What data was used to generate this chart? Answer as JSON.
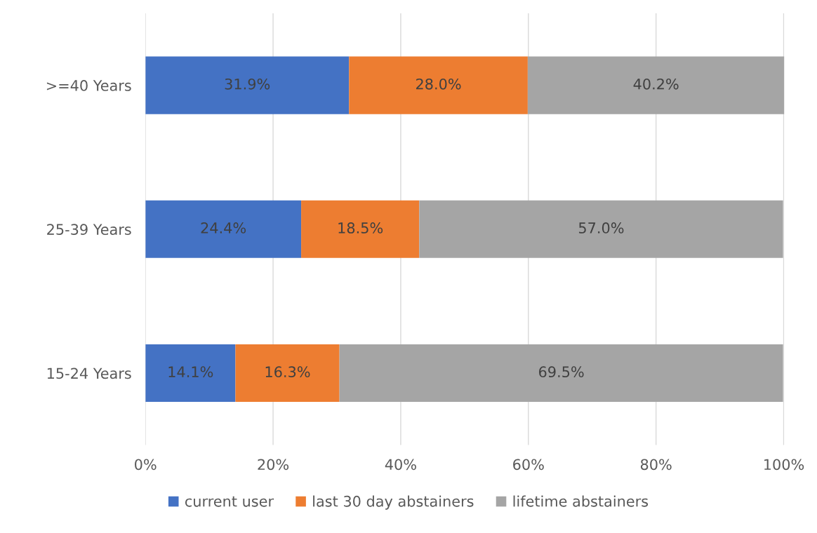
{
  "chart_data": {
    "type": "bar",
    "orientation": "horizontal",
    "stacked": true,
    "categories": [
      ">=40 Years",
      "25-39 Years",
      "15-24 Years"
    ],
    "series": [
      {
        "name": "current user",
        "color": "#4472c4",
        "values": [
          31.9,
          24.4,
          14.1
        ],
        "value_labels": [
          "31.9%",
          "24.4%",
          "14.1%"
        ]
      },
      {
        "name": "last 30 day abstainers",
        "color": "#ed7d31",
        "values": [
          28.0,
          18.5,
          16.3
        ],
        "value_labels": [
          "28.0%",
          "18.5%",
          "16.3%"
        ]
      },
      {
        "name": "lifetime abstainers",
        "color": "#a5a5a5",
        "values": [
          40.2,
          57.0,
          69.5
        ],
        "value_labels": [
          "40.2%",
          "57.0%",
          "69.5%"
        ]
      }
    ],
    "xlim": [
      0,
      100.1
    ],
    "xticks": [
      {
        "value": 0,
        "label": "0%"
      },
      {
        "value": 20,
        "label": "20%"
      },
      {
        "value": 40,
        "label": "40%"
      },
      {
        "value": 60,
        "label": "60%"
      },
      {
        "value": 80,
        "label": "80%"
      },
      {
        "value": 100,
        "label": "100%"
      }
    ],
    "grid": "x",
    "legend": "bottom"
  }
}
